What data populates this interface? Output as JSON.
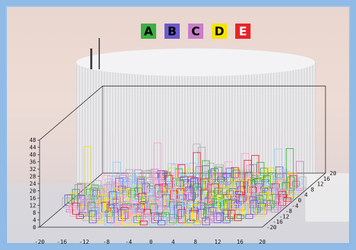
{
  "chart_data": {
    "type": "3d-bar",
    "title": "",
    "series": [
      {
        "name": "A",
        "color": "#3cb043",
        "text_color": "#000000"
      },
      {
        "name": "B",
        "color": "#6a5acd",
        "text_color": "#000000"
      },
      {
        "name": "C",
        "color": "#c77dc7",
        "text_color": "#000000"
      },
      {
        "name": "D",
        "color": "#f5e400",
        "text_color": "#000000"
      },
      {
        "name": "E",
        "color": "#e8232a",
        "text_color": "#ffffff"
      }
    ],
    "x_ticks": [
      "-20",
      "-16",
      "-12",
      "-8",
      "-4",
      "0",
      "4",
      "8",
      "12",
      "16",
      "20"
    ],
    "y_ticks": [
      "-20",
      "-16",
      "-12",
      "-8",
      "-4",
      "0",
      "4",
      "8",
      "12",
      "16",
      "20"
    ],
    "z_ticks": [
      "0",
      "4",
      "8",
      "12",
      "16",
      "20",
      "24",
      "28",
      "32",
      "36",
      "40",
      "44",
      "48"
    ],
    "xlim": [
      -20,
      20
    ],
    "ylim": [
      -20,
      20
    ],
    "zlim": [
      0,
      48
    ],
    "grid": false,
    "legend_placement": "top-center"
  }
}
